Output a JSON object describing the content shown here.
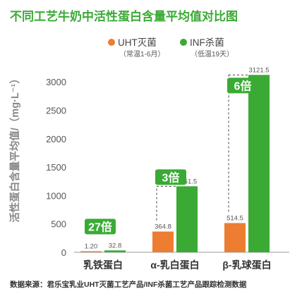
{
  "chart_data": {
    "type": "bar",
    "title": "不同工艺牛奶中活性蛋白含量平均值对比图",
    "ylabel": "活性蛋白含量平均值/（mg·L⁻¹）",
    "categories": [
      "乳铁蛋白",
      "α-乳白蛋白",
      "β-乳球蛋白"
    ],
    "ylim": [
      0,
      3200
    ],
    "yticks": [
      0,
      500,
      1000,
      1500,
      2000,
      2500,
      3000
    ],
    "series": [
      {
        "name": "UHT灭菌",
        "note": "（常温1-6月）",
        "color": "#ED7D31",
        "values": [
          1.2,
          364.8,
          514.5
        ],
        "labels": [
          "1.20",
          "364.8",
          "514.5"
        ]
      },
      {
        "name": "INF杀菌",
        "note": "（低温19天）",
        "color": "#3AAA35",
        "values": [
          32.8,
          1161.5,
          3121.5
        ],
        "labels": [
          "32.8",
          "1161.5",
          "3121.5"
        ]
      }
    ],
    "annotations": [
      "27倍",
      "3倍",
      "6倍"
    ],
    "legend": "top-right",
    "grid": false
  },
  "source": "数据来源：君乐宝乳业UHT灭菌工艺产品/INF杀菌工艺产品跟踪检测数据"
}
